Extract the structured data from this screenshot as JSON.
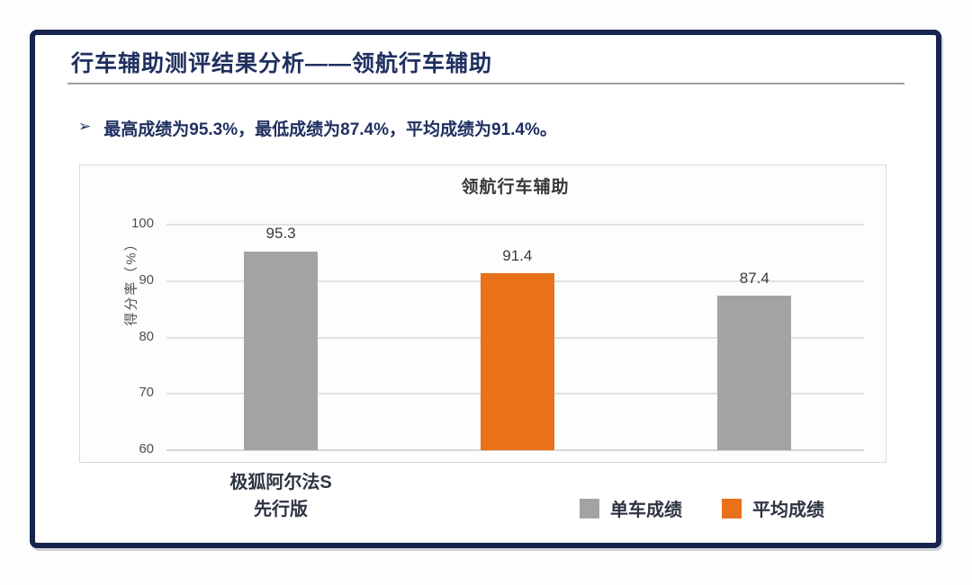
{
  "slide": {
    "title": "行车辅助测评结果分析——领航行车辅助",
    "bullet_marker": "➢",
    "bullet_text": "最高成绩为95.3%，最低成绩为87.4%，平均成绩为91.4%。"
  },
  "chart_data": {
    "type": "bar",
    "title": "领航行车辅助",
    "xlabel": "",
    "ylabel": "得分率（%）",
    "ylim": [
      60,
      100
    ],
    "yticks": [
      100,
      90,
      80,
      70,
      60
    ],
    "grid": true,
    "bars": [
      {
        "category": "极狐阿尔法S 先行版",
        "series": "单车成绩",
        "value": 95.3,
        "label": "95.3",
        "color": "#a3a3a3"
      },
      {
        "category": "",
        "series": "平均成绩",
        "value": 91.4,
        "label": "91.4",
        "color": "#e8711a"
      },
      {
        "category": "",
        "series": "单车成绩",
        "value": 87.4,
        "label": "87.4",
        "color": "#a3a3a3"
      }
    ],
    "category_label_lines": [
      "极狐阿尔法S",
      "先行版"
    ],
    "legend": [
      {
        "label": "单车成绩",
        "color": "#a3a3a3"
      },
      {
        "label": "平均成绩",
        "color": "#e8711a"
      }
    ],
    "legend_position": "bottom-right"
  },
  "colors": {
    "frame_navy": "#17254e",
    "title_navy": "#1f3060",
    "bar_gray": "#a3a3a3",
    "bar_orange": "#e8711a",
    "gridline": "#e5e1e1",
    "axis_text": "#4f4f4f",
    "data_label": "#3a3a3a",
    "dark_label": "#2e3442"
  }
}
